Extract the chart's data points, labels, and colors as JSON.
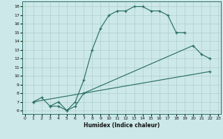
{
  "xlabel": "Humidex (Indice chaleur)",
  "bg_color": "#cce8e8",
  "line_color": "#2a6e62",
  "xlim_min": -0.3,
  "xlim_max": 23.3,
  "ylim_min": 5.6,
  "ylim_max": 18.6,
  "xticks": [
    0,
    1,
    2,
    3,
    4,
    5,
    6,
    7,
    8,
    9,
    10,
    11,
    12,
    13,
    14,
    15,
    16,
    17,
    18,
    19,
    20,
    21,
    22,
    23
  ],
  "yticks": [
    6,
    7,
    8,
    9,
    10,
    11,
    12,
    13,
    14,
    15,
    16,
    17,
    18
  ],
  "line1_x": [
    1,
    2,
    3,
    4,
    5,
    6,
    7,
    8,
    9,
    10,
    11,
    12,
    13,
    14,
    15,
    16,
    17,
    18,
    19
  ],
  "line1_y": [
    7.0,
    7.5,
    6.5,
    7.0,
    6.0,
    7.0,
    9.5,
    13.0,
    15.5,
    17.0,
    17.5,
    17.5,
    18.0,
    18.0,
    17.5,
    17.5,
    17.0,
    15.0,
    15.0
  ],
  "line2_x": [
    3,
    4,
    5,
    6,
    7,
    20,
    21,
    22
  ],
  "line2_y": [
    6.5,
    6.5,
    6.0,
    6.5,
    8.0,
    13.5,
    12.5,
    12.0
  ],
  "line3_x": [
    1,
    22
  ],
  "line3_y": [
    7.0,
    10.5
  ]
}
